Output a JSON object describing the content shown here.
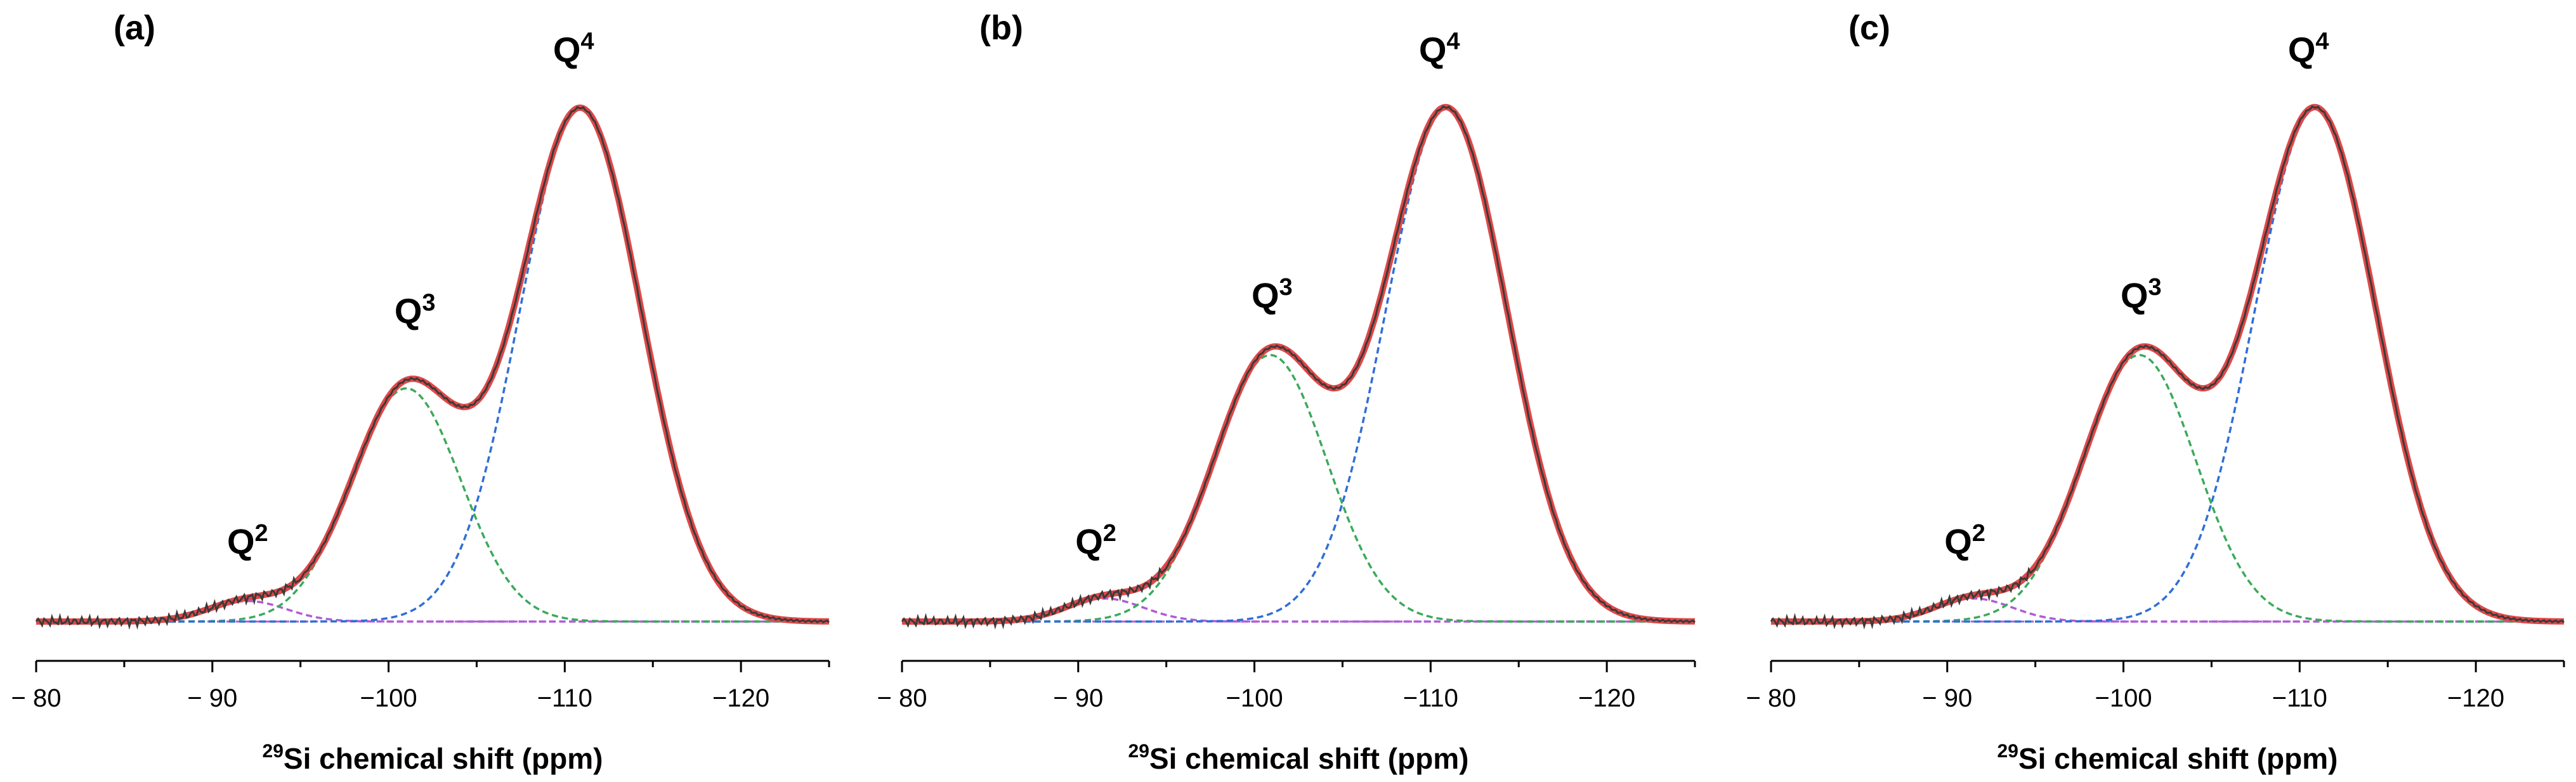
{
  "chart_data": [
    {
      "type": "line",
      "panel_label": "(a)",
      "xlabel": "Si chemical shift (ppm)",
      "xlabel_sup": "29",
      "xlim": [
        -80,
        -125
      ],
      "xticks": [
        -80,
        -90,
        -100,
        -110,
        -120
      ],
      "tick_labels": [
        "− 80",
        "− 90",
        "−100",
        "−110",
        "−120"
      ],
      "ylim": [
        0,
        1.05
      ],
      "peak_labels": [
        {
          "base": "Q",
          "sup": "2",
          "x": -92.0,
          "y": 0.12
        },
        {
          "base": "Q",
          "sup": "3",
          "x": -101.5,
          "y": 0.57
        },
        {
          "base": "Q",
          "sup": "4",
          "x": -110.5,
          "y": 1.08
        }
      ],
      "components": [
        {
          "name": "Q2",
          "color": "#b05bd6",
          "center": -92.0,
          "width": 2.2,
          "amp": 0.04
        },
        {
          "name": "Q3",
          "color": "#3aaa5a",
          "center": -101.0,
          "width": 3.1,
          "amp": 0.455
        },
        {
          "name": "Q4",
          "color": "#2f6fd6",
          "center": -110.9,
          "width": 3.45,
          "amp": 1.0
        }
      ]
    },
    {
      "type": "line",
      "panel_label": "(b)",
      "xlabel": "Si chemical shift (ppm)",
      "xlabel_sup": "29",
      "xlim": [
        -80,
        -125
      ],
      "xticks": [
        -80,
        -90,
        -100,
        -110,
        -120
      ],
      "tick_labels": [
        "− 80",
        "− 90",
        "−100",
        "−110",
        "−120"
      ],
      "ylim": [
        0,
        1.05
      ],
      "peak_labels": [
        {
          "base": "Q",
          "sup": "2",
          "x": -91.0,
          "y": 0.12
        },
        {
          "base": "Q",
          "sup": "3",
          "x": -101.0,
          "y": 0.6
        },
        {
          "base": "Q",
          "sup": "4",
          "x": -110.5,
          "y": 1.08
        }
      ],
      "components": [
        {
          "name": "Q2",
          "color": "#b05bd6",
          "center": -91.5,
          "width": 2.2,
          "amp": 0.045
        },
        {
          "name": "Q3",
          "color": "#3aaa5a",
          "center": -100.9,
          "width": 3.2,
          "amp": 0.52
        },
        {
          "name": "Q4",
          "color": "#2f6fd6",
          "center": -110.9,
          "width": 3.45,
          "amp": 1.0
        }
      ]
    },
    {
      "type": "line",
      "panel_label": "(c)",
      "xlabel": "Si chemical shift (ppm)",
      "xlabel_sup": "29",
      "xlim": [
        -80,
        -125
      ],
      "xticks": [
        -80,
        -90,
        -100,
        -110,
        -120
      ],
      "tick_labels": [
        "− 80",
        "− 90",
        "−100",
        "−110",
        "−120"
      ],
      "ylim": [
        0,
        1.05
      ],
      "peak_labels": [
        {
          "base": "Q",
          "sup": "2",
          "x": -91.0,
          "y": 0.12
        },
        {
          "base": "Q",
          "sup": "3",
          "x": -101.0,
          "y": 0.6
        },
        {
          "base": "Q",
          "sup": "4",
          "x": -110.5,
          "y": 1.08
        }
      ],
      "components": [
        {
          "name": "Q2",
          "color": "#b05bd6",
          "center": -91.5,
          "width": 2.2,
          "amp": 0.045
        },
        {
          "name": "Q3",
          "color": "#3aaa5a",
          "center": -100.9,
          "width": 3.2,
          "amp": 0.52
        },
        {
          "name": "Q4",
          "color": "#2f6fd6",
          "center": -110.9,
          "width": 3.45,
          "amp": 1.0
        }
      ]
    }
  ],
  "colors": {
    "experimental": "#3a3a3a",
    "fit_sum": "#e04848",
    "baseline": "#b05bd6",
    "axis": "#000000"
  }
}
